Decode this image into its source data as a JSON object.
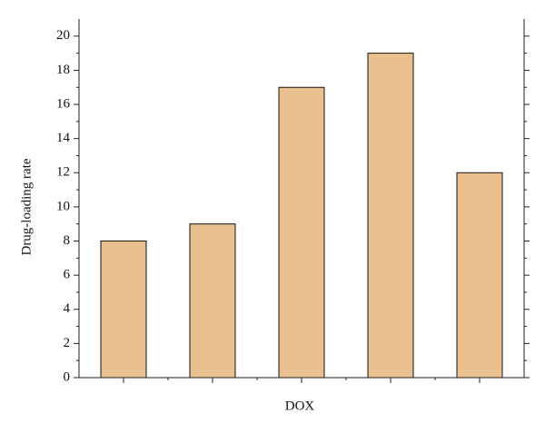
{
  "chart_data": {
    "type": "bar",
    "xlabel": "DOX",
    "ylabel": "Drug-loading rate",
    "categories": [
      null,
      null,
      null,
      null,
      null
    ],
    "values": [
      8,
      9,
      17,
      19,
      12
    ],
    "color": "#ebc08f",
    "ylim": [
      0,
      21
    ],
    "yticks": [
      0,
      2,
      4,
      6,
      8,
      10,
      12,
      14,
      16,
      18,
      20
    ]
  }
}
